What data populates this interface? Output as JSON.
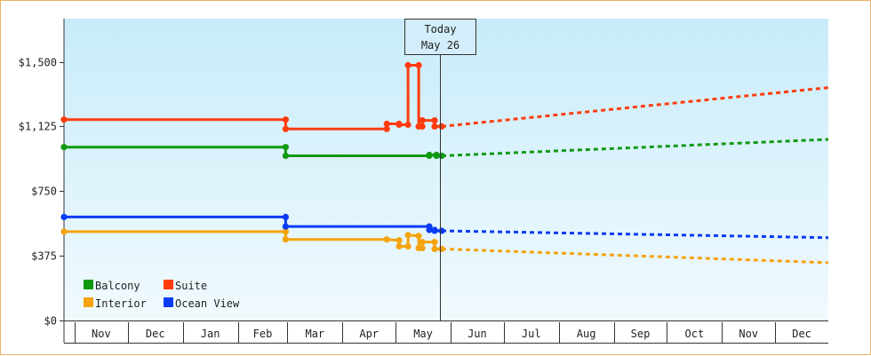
{
  "chart_data": {
    "type": "line",
    "title": "",
    "xlabel": "",
    "ylabel": "",
    "ylim": [
      0,
      1750
    ],
    "yticks": [
      {
        "value": 0,
        "label": "$0"
      },
      {
        "value": 375,
        "label": "$375"
      },
      {
        "value": 750,
        "label": "$750"
      },
      {
        "value": 1125,
        "label": "$1,125"
      },
      {
        "value": 1500,
        "label": "$1,500"
      }
    ],
    "x_range": [
      "2013-10-26",
      "2014-12-31"
    ],
    "month_labels": [
      {
        "label": "Nov",
        "start": "2013-11-01"
      },
      {
        "label": "Dec",
        "start": "2013-12-01"
      },
      {
        "label": "Jan",
        "start": "2014-01-01"
      },
      {
        "label": "Feb",
        "start": "2014-02-01"
      },
      {
        "label": "Mar",
        "start": "2014-03-01"
      },
      {
        "label": "Apr",
        "start": "2014-04-01"
      },
      {
        "label": "May",
        "start": "2014-05-01"
      },
      {
        "label": "Jun",
        "start": "2014-06-01"
      },
      {
        "label": "Jul",
        "start": "2014-07-01"
      },
      {
        "label": "Aug",
        "start": "2014-08-01"
      },
      {
        "label": "Sep",
        "start": "2014-09-01"
      },
      {
        "label": "Oct",
        "start": "2014-10-01"
      },
      {
        "label": "Nov",
        "start": "2014-11-01"
      },
      {
        "label": "Dec",
        "start": "2014-12-01"
      }
    ],
    "today": {
      "date": "2014-05-26",
      "line1": "Today",
      "line2": "May 26"
    },
    "grid": false,
    "legend_position": "bottom-left",
    "series": [
      {
        "name": "Balcony",
        "color": "#119911",
        "points": [
          [
            "2013-10-26",
            1005
          ],
          [
            "2014-02-28",
            1005
          ],
          [
            "2014-02-28",
            955
          ],
          [
            "2014-05-20",
            955
          ],
          [
            "2014-05-20",
            960
          ],
          [
            "2014-05-24",
            960
          ],
          [
            "2014-05-24",
            955
          ],
          [
            "2014-05-27",
            955
          ]
        ],
        "forecast": [
          [
            "2014-05-27",
            955
          ],
          [
            "2014-12-31",
            1050
          ]
        ]
      },
      {
        "name": "Suite",
        "color": "#ff3b0e",
        "points": [
          [
            "2013-10-26",
            1165
          ],
          [
            "2014-02-28",
            1165
          ],
          [
            "2014-02-28",
            1110
          ],
          [
            "2014-04-26",
            1110
          ],
          [
            "2014-04-26",
            1140
          ],
          [
            "2014-05-03",
            1140
          ],
          [
            "2014-05-03",
            1135
          ],
          [
            "2014-05-08",
            1135
          ],
          [
            "2014-05-08",
            1480
          ],
          [
            "2014-05-14",
            1480
          ],
          [
            "2014-05-14",
            1125
          ],
          [
            "2014-05-16",
            1125
          ],
          [
            "2014-05-16",
            1160
          ],
          [
            "2014-05-23",
            1160
          ],
          [
            "2014-05-23",
            1125
          ],
          [
            "2014-05-27",
            1125
          ]
        ],
        "forecast": [
          [
            "2014-05-27",
            1125
          ],
          [
            "2014-12-31",
            1350
          ]
        ]
      },
      {
        "name": "Interior",
        "color": "#f5a30f",
        "points": [
          [
            "2013-10-26",
            515
          ],
          [
            "2014-02-28",
            515
          ],
          [
            "2014-02-28",
            470
          ],
          [
            "2014-04-26",
            470
          ],
          [
            "2014-05-03",
            465
          ],
          [
            "2014-05-03",
            430
          ],
          [
            "2014-05-08",
            430
          ],
          [
            "2014-05-08",
            495
          ],
          [
            "2014-05-14",
            490
          ],
          [
            "2014-05-14",
            420
          ],
          [
            "2014-05-16",
            420
          ],
          [
            "2014-05-16",
            455
          ],
          [
            "2014-05-23",
            455
          ],
          [
            "2014-05-23",
            415
          ],
          [
            "2014-05-27",
            415
          ]
        ],
        "forecast": [
          [
            "2014-05-27",
            415
          ],
          [
            "2014-12-31",
            335
          ]
        ]
      },
      {
        "name": "Ocean View",
        "color": "#0a3cf5",
        "points": [
          [
            "2013-10-26",
            600
          ],
          [
            "2014-02-28",
            600
          ],
          [
            "2014-02-28",
            545
          ],
          [
            "2014-05-20",
            545
          ],
          [
            "2014-05-20",
            525
          ],
          [
            "2014-05-23",
            525
          ],
          [
            "2014-05-23",
            520
          ],
          [
            "2014-05-27",
            520
          ]
        ],
        "forecast": [
          [
            "2014-05-27",
            520
          ],
          [
            "2014-12-31",
            480
          ]
        ]
      }
    ]
  }
}
